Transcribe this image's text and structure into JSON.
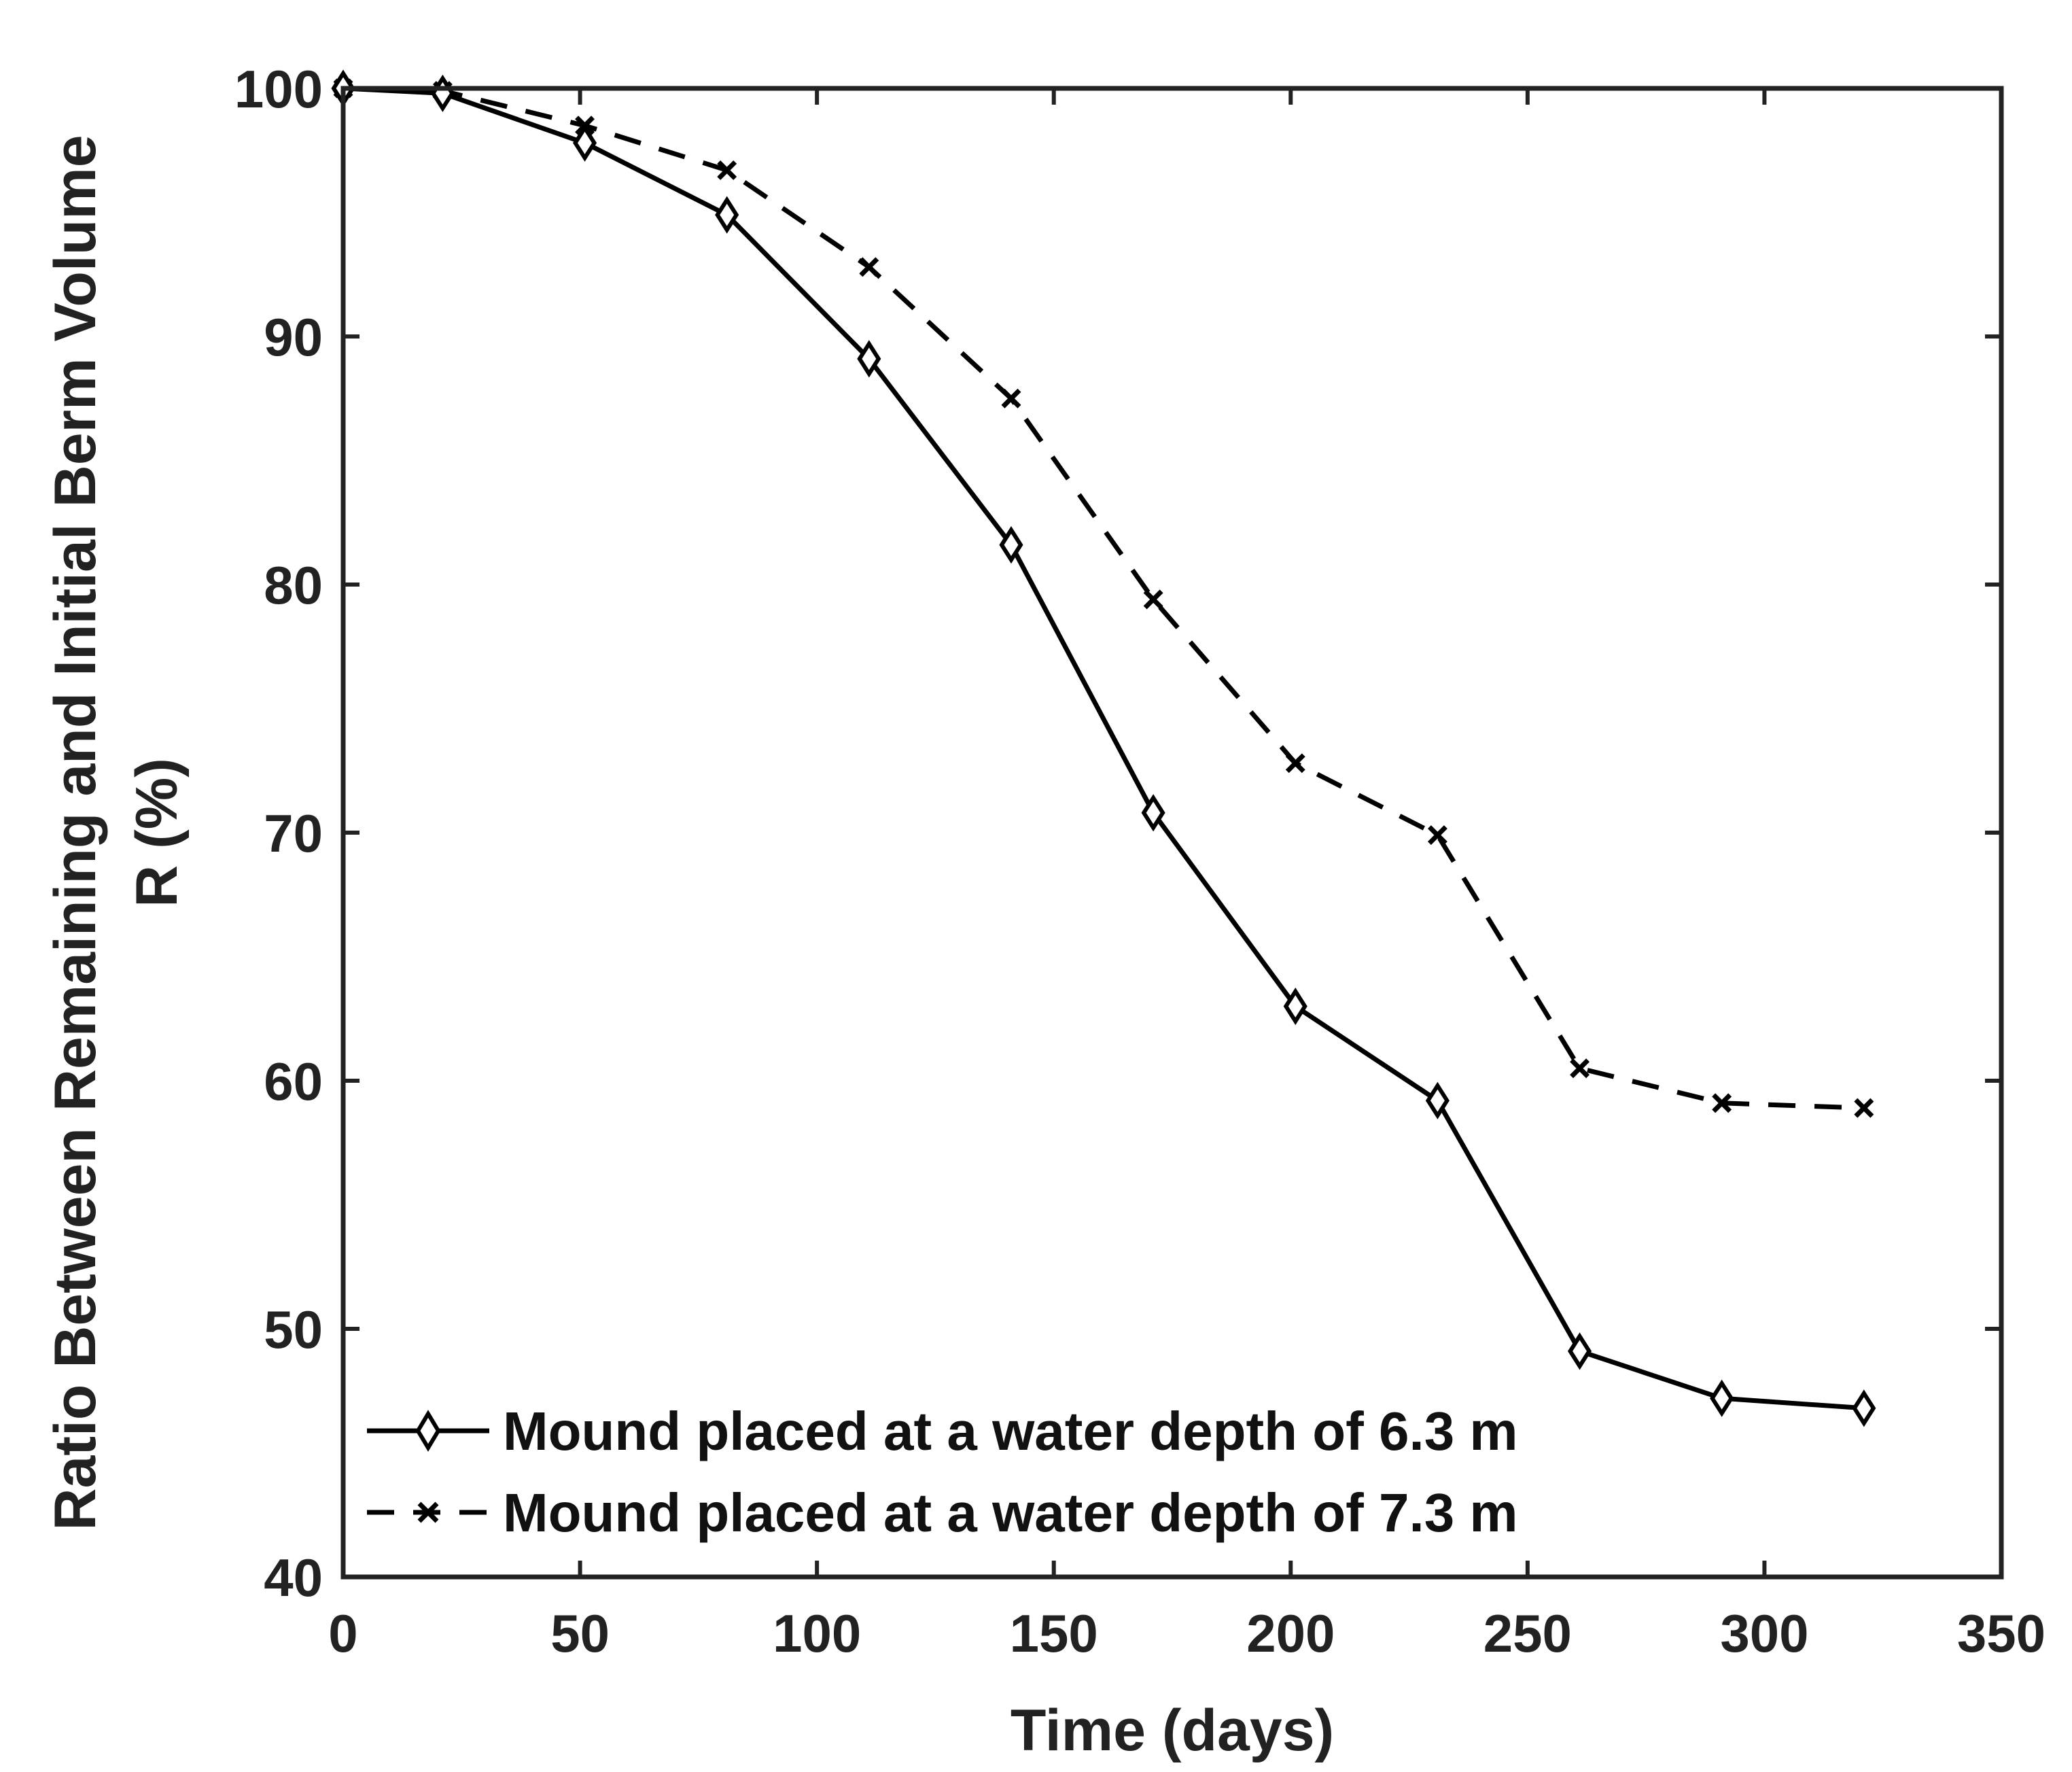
{
  "chart_data": {
    "type": "line",
    "title": "",
    "xlabel": "Time (days)",
    "ylabel_line1": "Ratio Between Remaining and Initial Berm Volume",
    "ylabel_line2": "R (%)",
    "xlim": [
      0,
      350
    ],
    "ylim": [
      40,
      100
    ],
    "xticks": [
      0,
      50,
      100,
      150,
      200,
      250,
      300,
      350
    ],
    "yticks": [
      40,
      50,
      60,
      70,
      80,
      90,
      100
    ],
    "grid": false,
    "legend_position": "bottom-left",
    "series": [
      {
        "name": "Mound placed at a water depth of 6.3 m",
        "line_style": "solid",
        "marker": "diamond",
        "color": "#000000",
        "x": [
          0,
          21,
          51,
          81,
          111,
          141,
          171,
          201,
          231,
          261,
          291,
          321
        ],
        "y": [
          100,
          99.8,
          97.8,
          94.9,
          89.1,
          81.6,
          70.8,
          63.0,
          59.2,
          49.1,
          47.2,
          46.8
        ]
      },
      {
        "name": "Mound placed at a water depth of 7.3 m",
        "line_style": "dashed",
        "marker": "x",
        "color": "#000000",
        "x": [
          0,
          21,
          51,
          81,
          111,
          141,
          171,
          201,
          231,
          261,
          291,
          321
        ],
        "y": [
          100,
          99.9,
          98.5,
          96.7,
          92.8,
          87.5,
          79.4,
          72.8,
          69.9,
          60.5,
          59.1,
          58.9
        ]
      }
    ]
  }
}
